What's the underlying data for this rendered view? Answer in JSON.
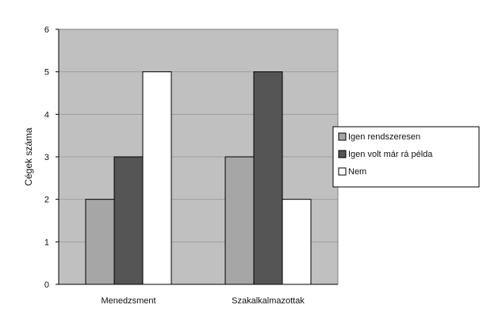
{
  "chart_data": {
    "type": "bar",
    "title": "",
    "xlabel": "",
    "ylabel": "Cégek száma",
    "categories": [
      "Menedzsment",
      "Szakalkalmazottak"
    ],
    "series": [
      {
        "name": "Igen rendszeresen",
        "color": "#a6a6a6",
        "values": [
          2,
          3
        ]
      },
      {
        "name": "Igen volt már rá példa",
        "color": "#555555",
        "values": [
          3,
          5
        ]
      },
      {
        "name": "Nem",
        "color": "#ffffff",
        "values": [
          5,
          2
        ]
      }
    ],
    "yticks": [
      "0",
      "1",
      "2",
      "3",
      "4",
      "5",
      "6"
    ],
    "ylim": [
      0,
      6
    ],
    "grid": true,
    "legend_position": "right",
    "colors": {
      "plot_background": "#c0c0c0",
      "gridline": "#9e9e9e",
      "bar_outline": "#000000"
    }
  }
}
